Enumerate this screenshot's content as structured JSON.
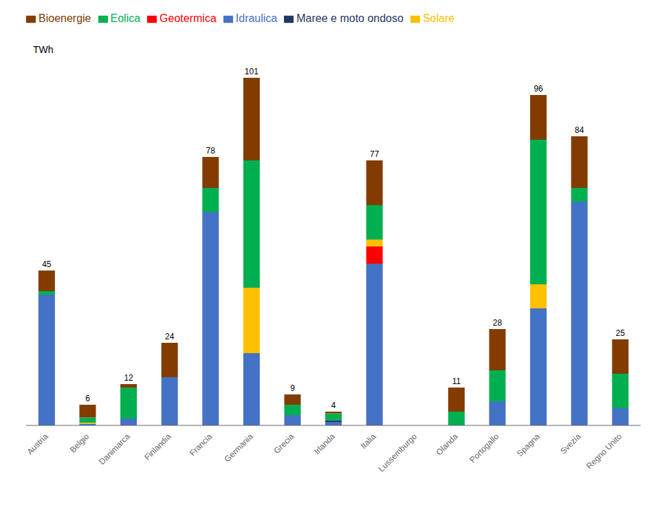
{
  "chart_data": {
    "type": "bar",
    "stacked": true,
    "ylabel": "TWh",
    "categories": [
      "Austria",
      "Belgio",
      "Danimarca",
      "Finlandia",
      "Francia",
      "Germania",
      "Grecia",
      "Irlanda",
      "Italia",
      "Lussemburgo",
      "Olanda",
      "Portogallo",
      "Spagna",
      "Svezia",
      "Regno Unito"
    ],
    "series": [
      {
        "name": "Idraulica",
        "color": "#4472C4",
        "values": [
          38,
          0.5,
          2,
          14,
          62,
          21,
          3,
          1,
          47,
          0,
          0,
          7,
          34,
          65,
          5
        ]
      },
      {
        "name": "Geotermica",
        "color": "#FF0000",
        "values": [
          0,
          0,
          0,
          0,
          0,
          0,
          0,
          0,
          5,
          0,
          0,
          0,
          0,
          0,
          0
        ]
      },
      {
        "name": "Solare",
        "color": "#FFC000",
        "values": [
          0,
          0.3,
          0,
          0,
          0,
          19,
          0,
          0,
          2,
          0,
          0,
          0,
          7,
          0,
          0
        ]
      },
      {
        "name": "Maree e moto ondoso",
        "color": "#1F3864",
        "values": [
          0,
          0,
          0,
          0,
          0,
          0,
          0,
          0.5,
          0,
          0,
          0,
          0,
          0,
          0,
          0
        ]
      },
      {
        "name": "Eolica",
        "color": "#00B050",
        "values": [
          1,
          1.5,
          9,
          0,
          7,
          37,
          3,
          2,
          10,
          0,
          4,
          9,
          42,
          4,
          10
        ]
      },
      {
        "name": "Bioenergie",
        "color": "#833C00",
        "values": [
          6,
          3.7,
          1,
          10,
          9,
          24,
          3,
          0.5,
          13,
          0,
          7,
          12,
          13,
          15,
          10
        ]
      }
    ],
    "totals": [
      45,
      6,
      12,
      24,
      78,
      101,
      9,
      4,
      77,
      0,
      11,
      28,
      96,
      84,
      25
    ],
    "ylim": [
      0,
      112
    ],
    "legend": "top",
    "tick_labels": "x",
    "grid": false
  }
}
